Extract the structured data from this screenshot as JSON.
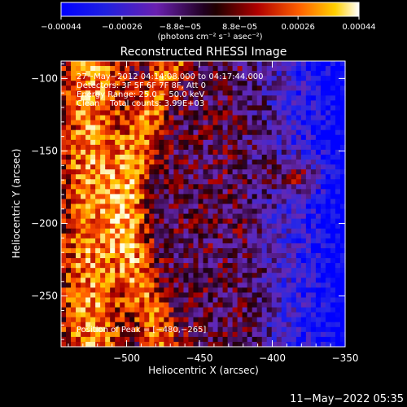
{
  "chart_data": {
    "type": "heatmap",
    "title": "Reconstructed RHESSI Image",
    "xlabel": "Heliocentric X (arcsec)",
    "ylabel": "Heliocentric Y (arcsec)",
    "xlim": [
      -545,
      -350
    ],
    "ylim": [
      -285,
      -88
    ],
    "x_ticks": [
      -500,
      -450,
      -400,
      -350
    ],
    "x_tick_labels": [
      "−500",
      "−450",
      "−400",
      "−350"
    ],
    "y_ticks": [
      -100,
      -150,
      -200,
      -250
    ],
    "y_tick_labels": [
      "−100",
      "−150",
      "−200",
      "−250"
    ],
    "colorbar": {
      "range": [
        -0.00044,
        0.00044
      ],
      "ticks": [
        -0.00044,
        -0.00026,
        -8.8e-05,
        8.8e-05,
        0.00026,
        0.00044
      ],
      "tick_labels": [
        "−0.00044",
        "−0.00026",
        "−8.8e−05",
        "8.8e−05",
        "0.00026",
        "0.00044"
      ],
      "units": "(photons cm⁻² s⁻¹ asec⁻²)"
    },
    "annotations": [
      "27−May−2012 04:14:08.000 to 04:17:44.000",
      "Detectors: 3F 5F 6F 7F 8F, Att 0",
      "Energy Range: 25.0 − 50.0 keV",
      "Clean    Total counts: 3.99E+03"
    ],
    "peak_label": "Position of Peak = [−480,−265]",
    "peak_position": [
      -480,
      -265
    ]
  },
  "footer_date": "11−May−2022 05:35"
}
